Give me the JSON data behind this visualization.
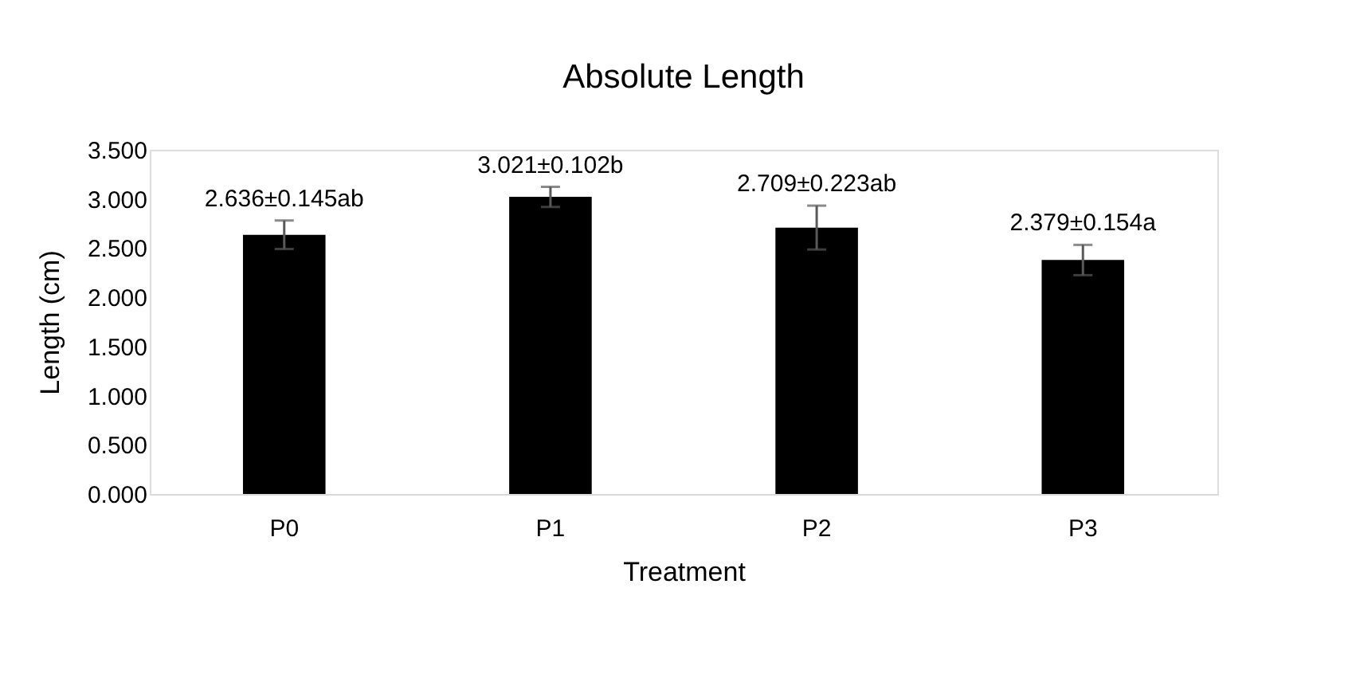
{
  "chart_data": {
    "type": "bar",
    "title": "Absolute Length",
    "xlabel": "Treatment",
    "ylabel": "Length (cm)",
    "categories": [
      "P0",
      "P1",
      "P2",
      "P3"
    ],
    "series": [
      {
        "color": "#000000",
        "values": [
          2.636,
          3.021,
          2.709,
          2.379
        ],
        "errors": [
          0.145,
          0.102,
          0.223,
          0.154
        ],
        "value_labels": [
          "2.636±0.145ab",
          "3.021±0.102b",
          "2.709±0.223ab",
          "2.379±0.154a"
        ]
      }
    ],
    "ylim": [
      0,
      3.5
    ],
    "yticks": [
      {
        "value": 0,
        "label": "0.000"
      },
      {
        "value": 0.5,
        "label": "0.500"
      },
      {
        "value": 1,
        "label": "1.000"
      },
      {
        "value": 1.5,
        "label": "1.500"
      },
      {
        "value": 2,
        "label": "2.000"
      },
      {
        "value": 2.5,
        "label": "2.500"
      },
      {
        "value": 3,
        "label": "3.000"
      },
      {
        "value": 3.5,
        "label": "3.500"
      }
    ],
    "grid": false
  }
}
